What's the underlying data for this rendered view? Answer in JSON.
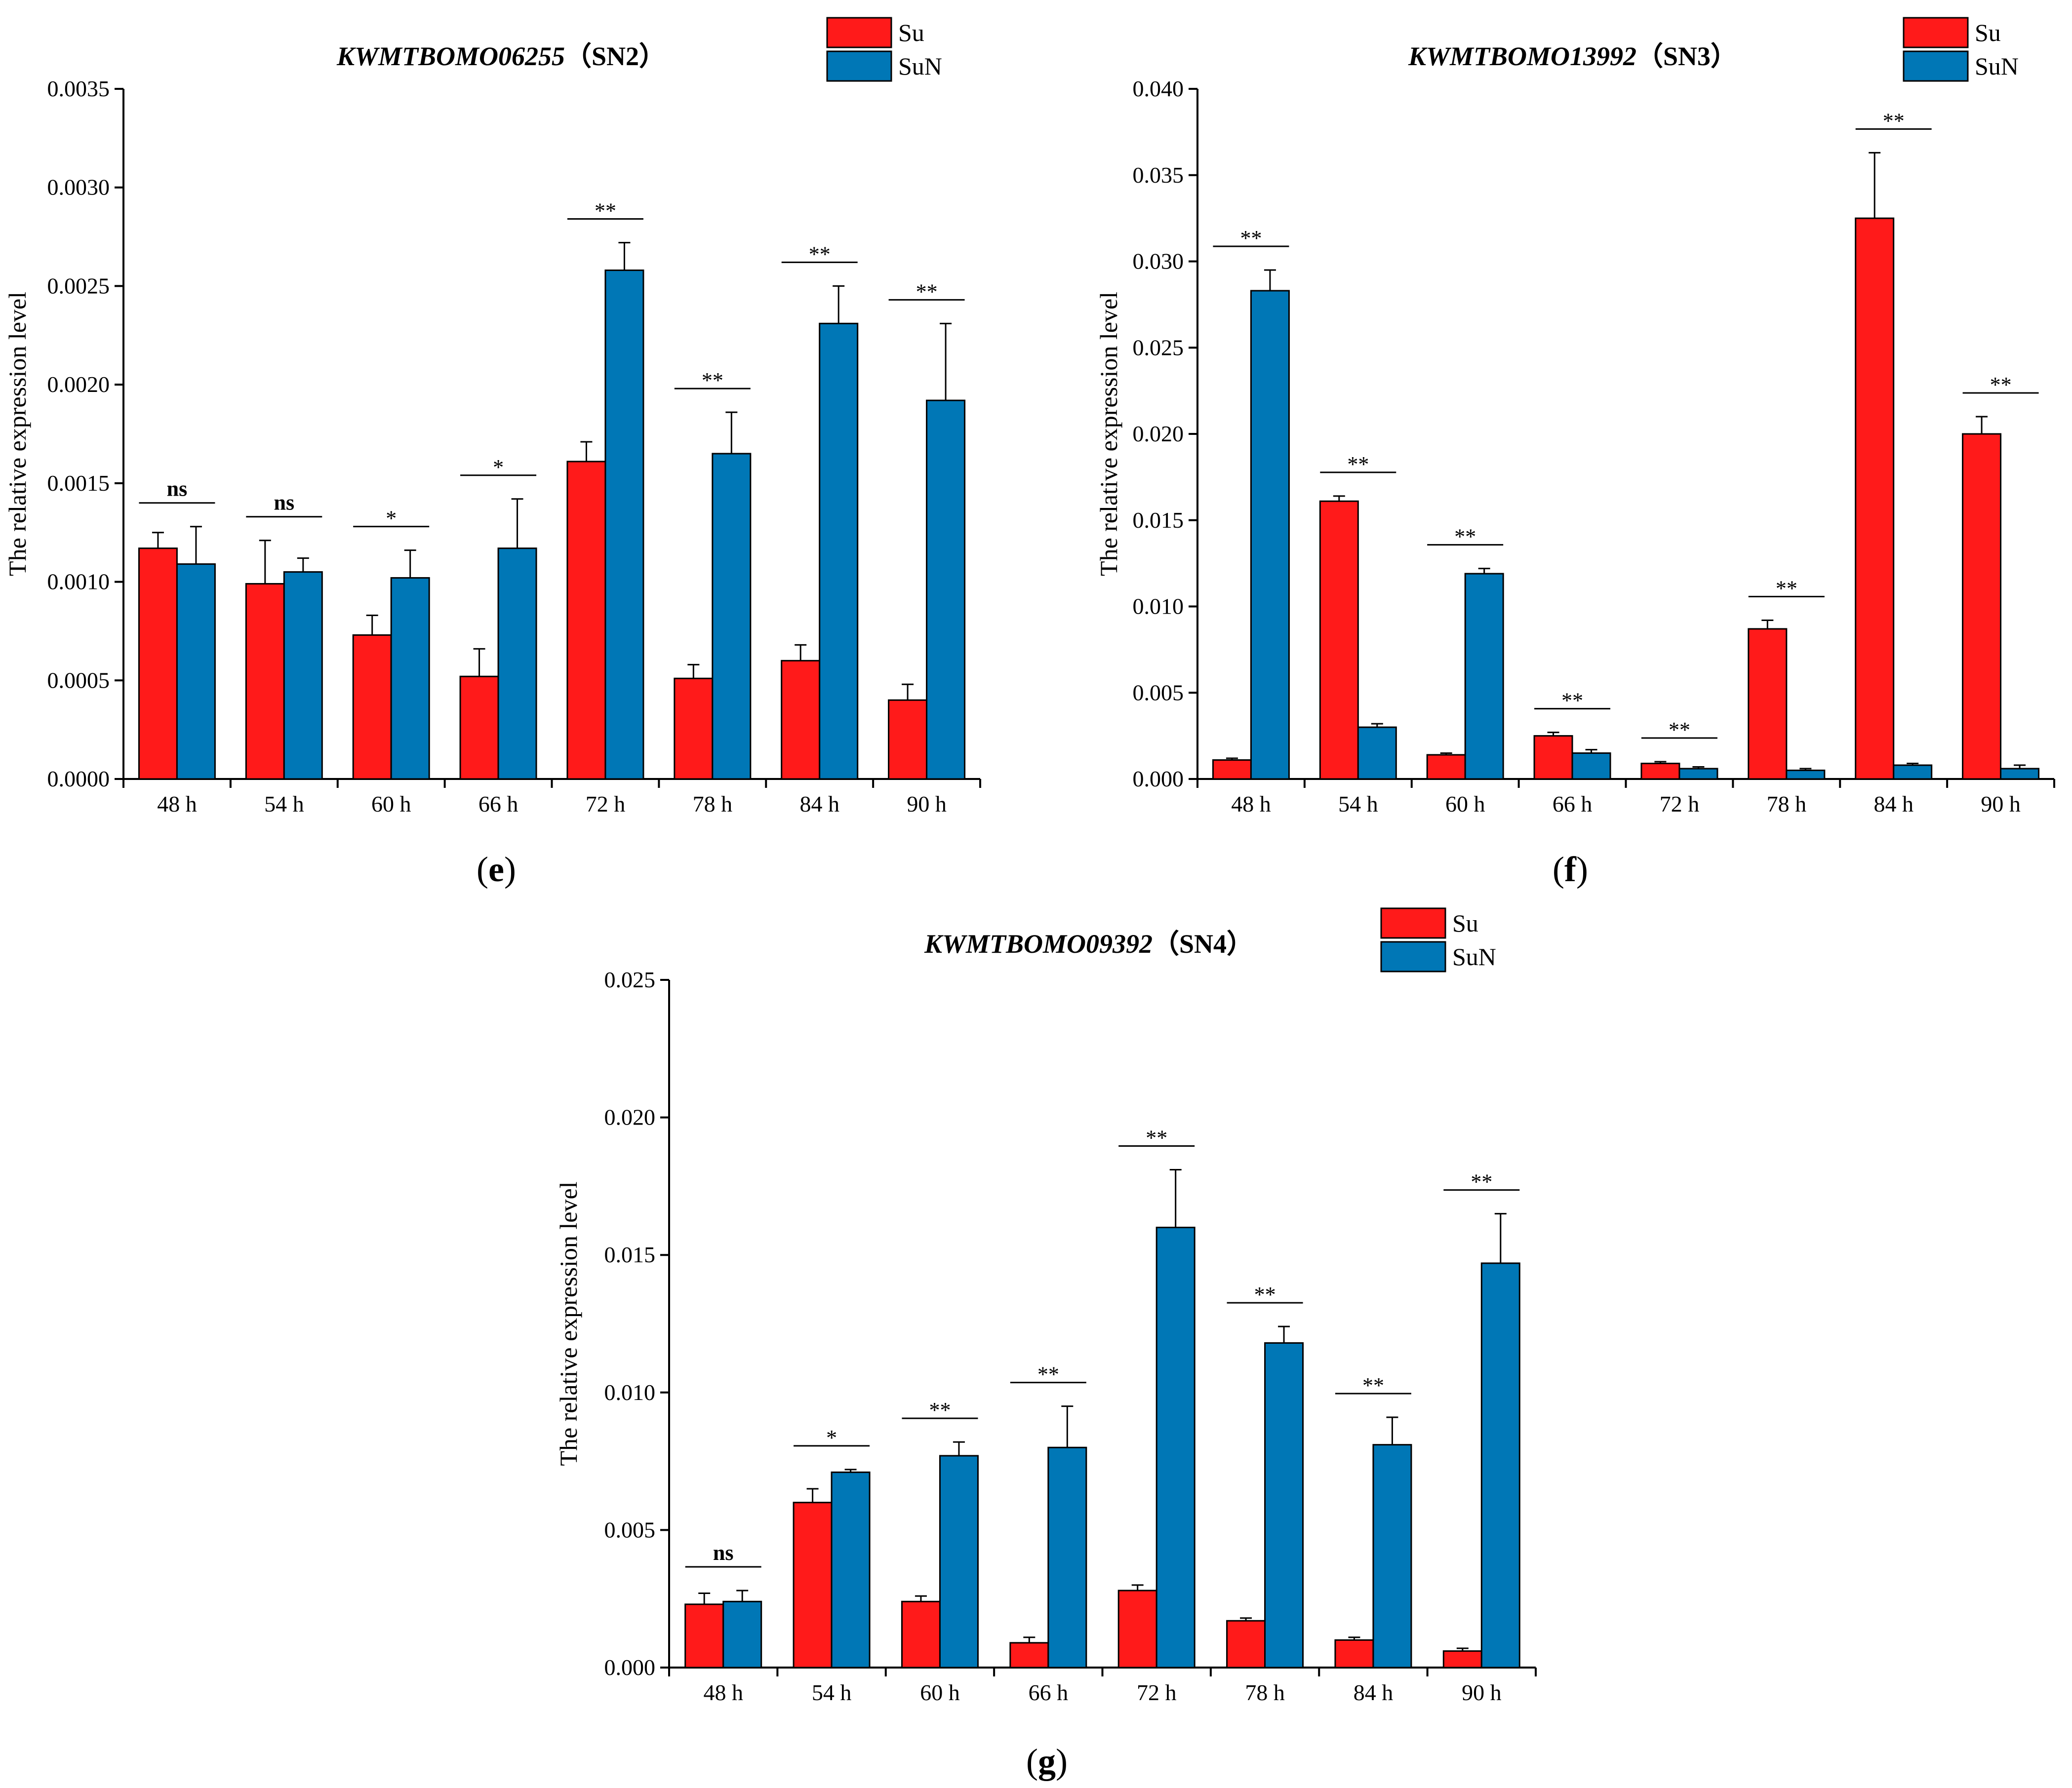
{
  "figure": {
    "panels": [
      "e",
      "f",
      "g"
    ]
  },
  "colors": {
    "Su": "#ff1a1a",
    "SuN": "#0077b6",
    "axis": "#000000"
  },
  "chart_data": [
    {
      "type": "bar",
      "panel_label": "e",
      "title_gene": "KWMTBOMO06255",
      "title_suffix": "（SN2）",
      "xlabel": "",
      "ylabel": "The relative expression level",
      "ylim": [
        0,
        0.0035
      ],
      "yticks": [
        "0.0000",
        "0.0005",
        "0.0010",
        "0.0015",
        "0.0020",
        "0.0025",
        "0.0030",
        "0.0035"
      ],
      "categories": [
        "48 h",
        "54 h",
        "60 h",
        "66 h",
        "72 h",
        "78 h",
        "84 h",
        "90 h"
      ],
      "series": [
        {
          "name": "Su",
          "values": [
            0.00117,
            0.00099,
            0.00073,
            0.00052,
            0.00161,
            0.00051,
            0.0006,
            0.0004
          ],
          "errors": [
            8e-05,
            0.00022,
            0.0001,
            0.00014,
            0.0001,
            7e-05,
            8e-05,
            8e-05
          ]
        },
        {
          "name": "SuN",
          "values": [
            0.00109,
            0.00105,
            0.00102,
            0.00117,
            0.00258,
            0.00165,
            0.00231,
            0.00192
          ],
          "errors": [
            0.00019,
            7e-05,
            0.00014,
            0.00025,
            0.00014,
            0.00021,
            0.00019,
            0.00039
          ]
        }
      ],
      "significance": [
        "ns",
        "ns",
        "*",
        "*",
        "**",
        "**",
        "**",
        "**"
      ],
      "legend": [
        "Su",
        "SuN"
      ]
    },
    {
      "type": "bar",
      "panel_label": "f",
      "title_gene": "KWMTBOMO13992",
      "title_suffix": "（SN3）",
      "xlabel": "",
      "ylabel": "The relative expression level",
      "ylim": [
        0,
        0.04
      ],
      "yticks": [
        "0.000",
        "0.005",
        "0.010",
        "0.015",
        "0.020",
        "0.025",
        "0.030",
        "0.035",
        "0.040"
      ],
      "categories": [
        "48 h",
        "54 h",
        "60 h",
        "66 h",
        "72 h",
        "78 h",
        "84 h",
        "90 h"
      ],
      "series": [
        {
          "name": "Su",
          "values": [
            0.0011,
            0.0161,
            0.0014,
            0.0025,
            0.0009,
            0.0087,
            0.0325,
            0.02
          ],
          "errors": [
            0.0001,
            0.0003,
            0.0001,
            0.0002,
            0.0001,
            0.0005,
            0.0038,
            0.001
          ]
        },
        {
          "name": "SuN",
          "values": [
            0.0283,
            0.003,
            0.0119,
            0.0015,
            0.0006,
            0.0005,
            0.0008,
            0.0006
          ],
          "errors": [
            0.0012,
            0.0002,
            0.0003,
            0.0002,
            0.0001,
            0.0001,
            0.0001,
            0.0002
          ]
        }
      ],
      "significance": [
        "**",
        "**",
        "**",
        "**",
        "**",
        "**",
        "**",
        "**"
      ],
      "legend": [
        "Su",
        "SuN"
      ]
    },
    {
      "type": "bar",
      "panel_label": "g",
      "title_gene": "KWMTBOMO09392",
      "title_suffix": "（SN4）",
      "xlabel": "",
      "ylabel": "The relative expression level",
      "ylim": [
        0,
        0.025
      ],
      "yticks": [
        "0.000",
        "0.005",
        "0.010",
        "0.015",
        "0.020",
        "0.025"
      ],
      "categories": [
        "48 h",
        "54 h",
        "60 h",
        "66 h",
        "72 h",
        "78 h",
        "84 h",
        "90 h"
      ],
      "series": [
        {
          "name": "Su",
          "values": [
            0.0023,
            0.006,
            0.0024,
            0.0009,
            0.0028,
            0.0017,
            0.001,
            0.0006
          ],
          "errors": [
            0.0004,
            0.0005,
            0.0002,
            0.0002,
            0.0002,
            0.0001,
            0.0001,
            0.0001
          ]
        },
        {
          "name": "SuN",
          "values": [
            0.0024,
            0.0071,
            0.0077,
            0.008,
            0.016,
            0.0118,
            0.0081,
            0.0147
          ],
          "errors": [
            0.0004,
            0.0001,
            0.0005,
            0.0015,
            0.0021,
            0.0006,
            0.001,
            0.0018
          ]
        }
      ],
      "significance": [
        "ns",
        "*",
        "**",
        "**",
        "**",
        "**",
        "**",
        "**"
      ],
      "legend": [
        "Su",
        "SuN"
      ]
    }
  ]
}
